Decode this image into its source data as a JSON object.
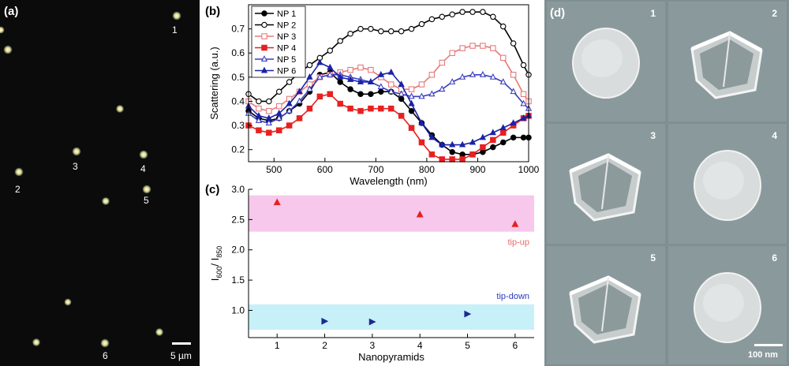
{
  "panel_a": {
    "label": "(a)",
    "scale_bar": "5 µm",
    "particle_labels": [
      "1",
      "2",
      "3",
      "4",
      "5",
      "6"
    ]
  },
  "panel_b": {
    "label": "(b)",
    "chart_data": {
      "type": "line",
      "xlabel": "Wavelength (nm)",
      "ylabel": "Scattering (a.u.)",
      "xlim": [
        450,
        1000
      ],
      "ylim": [
        0.15,
        0.8
      ],
      "xticks": [
        500,
        600,
        700,
        800,
        900,
        1000
      ],
      "yticks": [
        0.2,
        0.3,
        0.4,
        0.5,
        0.6,
        0.7
      ],
      "legend_position": "top-left",
      "series": [
        {
          "name": "NP 1",
          "color": "#000000",
          "marker": "circle-filled",
          "x": [
            450,
            470,
            490,
            510,
            530,
            550,
            570,
            590,
            610,
            630,
            650,
            670,
            690,
            710,
            730,
            750,
            770,
            790,
            810,
            830,
            850,
            870,
            890,
            910,
            930,
            950,
            970,
            990,
            1000
          ],
          "y": [
            0.36,
            0.33,
            0.32,
            0.33,
            0.36,
            0.39,
            0.44,
            0.51,
            0.52,
            0.48,
            0.45,
            0.43,
            0.43,
            0.44,
            0.44,
            0.41,
            0.36,
            0.31,
            0.26,
            0.22,
            0.19,
            0.18,
            0.18,
            0.19,
            0.21,
            0.23,
            0.25,
            0.25,
            0.25
          ]
        },
        {
          "name": "NP 2",
          "color": "#000000",
          "marker": "circle-open",
          "x": [
            450,
            470,
            490,
            510,
            530,
            550,
            570,
            590,
            610,
            630,
            650,
            670,
            690,
            710,
            730,
            750,
            770,
            790,
            810,
            830,
            850,
            870,
            890,
            910,
            930,
            950,
            970,
            990,
            1000
          ],
          "y": [
            0.43,
            0.4,
            0.4,
            0.44,
            0.48,
            0.52,
            0.55,
            0.58,
            0.61,
            0.65,
            0.68,
            0.7,
            0.7,
            0.69,
            0.69,
            0.69,
            0.7,
            0.72,
            0.74,
            0.75,
            0.76,
            0.77,
            0.77,
            0.77,
            0.75,
            0.71,
            0.64,
            0.55,
            0.51
          ]
        },
        {
          "name": "NP 3",
          "color": "#e87a7a",
          "marker": "square-open",
          "x": [
            450,
            470,
            490,
            510,
            530,
            550,
            570,
            590,
            610,
            630,
            650,
            670,
            690,
            710,
            730,
            750,
            770,
            790,
            810,
            830,
            850,
            870,
            890,
            910,
            930,
            950,
            970,
            990,
            1000
          ],
          "y": [
            0.4,
            0.37,
            0.36,
            0.38,
            0.41,
            0.44,
            0.47,
            0.5,
            0.51,
            0.52,
            0.53,
            0.54,
            0.53,
            0.5,
            0.47,
            0.45,
            0.45,
            0.47,
            0.51,
            0.56,
            0.6,
            0.62,
            0.63,
            0.63,
            0.62,
            0.58,
            0.51,
            0.43,
            0.4
          ]
        },
        {
          "name": "NP 4",
          "color": "#e82020",
          "marker": "square-filled",
          "x": [
            450,
            470,
            490,
            510,
            530,
            550,
            570,
            590,
            610,
            630,
            650,
            670,
            690,
            710,
            730,
            750,
            770,
            790,
            810,
            830,
            850,
            870,
            890,
            910,
            930,
            950,
            970,
            990,
            1000
          ],
          "y": [
            0.3,
            0.28,
            0.27,
            0.28,
            0.3,
            0.33,
            0.37,
            0.42,
            0.43,
            0.39,
            0.37,
            0.36,
            0.37,
            0.37,
            0.37,
            0.34,
            0.29,
            0.23,
            0.18,
            0.16,
            0.16,
            0.16,
            0.18,
            0.21,
            0.24,
            0.27,
            0.3,
            0.33,
            0.34
          ]
        },
        {
          "name": "NP 5",
          "color": "#3a3fbf",
          "marker": "triangle-open",
          "x": [
            450,
            470,
            490,
            510,
            530,
            550,
            570,
            590,
            610,
            630,
            650,
            670,
            690,
            710,
            730,
            750,
            770,
            790,
            810,
            830,
            850,
            870,
            890,
            910,
            930,
            950,
            970,
            990,
            1000
          ],
          "y": [
            0.35,
            0.32,
            0.31,
            0.33,
            0.36,
            0.4,
            0.45,
            0.5,
            0.51,
            0.51,
            0.5,
            0.49,
            0.48,
            0.46,
            0.44,
            0.43,
            0.42,
            0.42,
            0.43,
            0.45,
            0.48,
            0.5,
            0.51,
            0.51,
            0.5,
            0.48,
            0.44,
            0.39,
            0.37
          ]
        },
        {
          "name": "NP 6",
          "color": "#1a22a8",
          "marker": "triangle-filled",
          "x": [
            450,
            470,
            490,
            510,
            530,
            550,
            570,
            590,
            610,
            630,
            650,
            670,
            690,
            710,
            730,
            750,
            770,
            790,
            810,
            830,
            850,
            870,
            890,
            910,
            930,
            950,
            970,
            990,
            1000
          ],
          "y": [
            0.38,
            0.34,
            0.33,
            0.35,
            0.39,
            0.44,
            0.5,
            0.56,
            0.54,
            0.5,
            0.49,
            0.48,
            0.48,
            0.51,
            0.52,
            0.47,
            0.39,
            0.31,
            0.25,
            0.22,
            0.22,
            0.22,
            0.23,
            0.25,
            0.27,
            0.29,
            0.31,
            0.33,
            0.34
          ]
        }
      ]
    }
  },
  "panel_c": {
    "label": "(c)",
    "chart_data": {
      "type": "scatter",
      "xlabel": "Nanopyramids",
      "ylabel_main": "I",
      "ylabel_sub1": "600",
      "ylabel_sep": "/ I",
      "ylabel_sub2": "850",
      "xlim": [
        0.4,
        6.4
      ],
      "ylim": [
        0.55,
        3.0
      ],
      "xticks": [
        1,
        2,
        3,
        4,
        5,
        6
      ],
      "yticks": [
        1.0,
        1.5,
        2.0,
        2.5,
        3.0
      ],
      "ytick_labels": [
        "1.0",
        "1.5",
        "2.0",
        "2.5",
        "3.0"
      ],
      "bands": [
        {
          "label": "tip-up",
          "range": [
            2.3,
            2.9
          ],
          "color": "#f8c8ec",
          "label_color": "#e86a6a"
        },
        {
          "label": "tip-down",
          "range": [
            0.68,
            1.1
          ],
          "color": "#c8f0f8",
          "label_color": "#2a3ab8"
        }
      ],
      "series": [
        {
          "name": "tip-up",
          "color": "#e82020",
          "marker": "triangle-up",
          "x": [
            1,
            4,
            6
          ],
          "y": [
            2.78,
            2.58,
            2.42
          ]
        },
        {
          "name": "tip-down",
          "color": "#1a2a90",
          "marker": "triangle-right",
          "x": [
            2,
            3,
            5
          ],
          "y": [
            0.82,
            0.81,
            0.94
          ]
        }
      ]
    }
  },
  "panel_d": {
    "label": "(d)",
    "scale_bar": "100 nm",
    "images": [
      {
        "number": "1",
        "shape": "round"
      },
      {
        "number": "2",
        "shape": "pyramid"
      },
      {
        "number": "3",
        "shape": "pyramid"
      },
      {
        "number": "4",
        "shape": "round"
      },
      {
        "number": "5",
        "shape": "pyramid"
      },
      {
        "number": "6",
        "shape": "round"
      }
    ]
  }
}
